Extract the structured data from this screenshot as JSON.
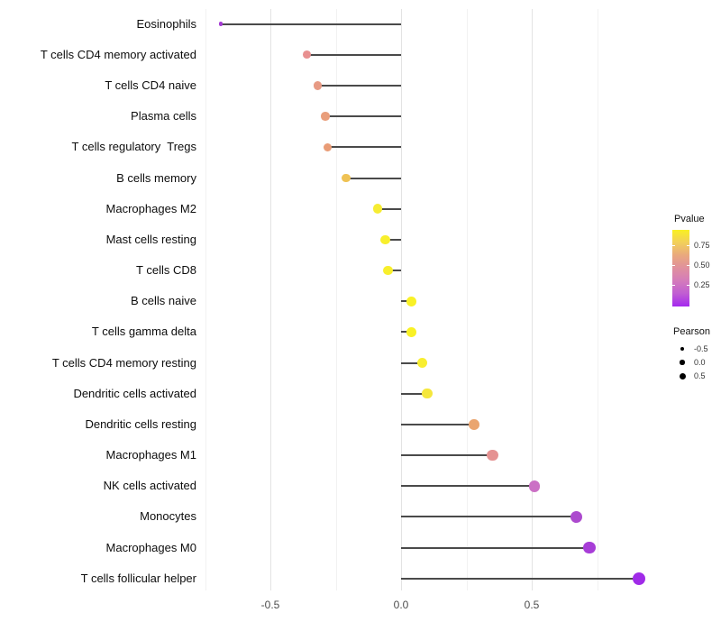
{
  "chart_data": {
    "type": "lollipop",
    "orientation": "horizontal",
    "title": "",
    "xlabel": "",
    "ylabel": "",
    "x_axis": {
      "tick_labels": [
        "-0.5",
        "0.0",
        "0.5"
      ],
      "tick_values": [
        -0.5,
        0.0,
        0.5
      ],
      "major_gridlines": [
        -0.5,
        0.0,
        0.5
      ],
      "minor_gridlines": [
        -0.75,
        -0.25,
        0.25,
        0.75
      ],
      "xlim": [
        -0.77,
        0.99
      ]
    },
    "series": [
      {
        "category": "Eosinophils",
        "pearson": -0.69,
        "color": "#A43BD3",
        "diameter": 4.5
      },
      {
        "category": "T cells CD4 memory activated",
        "pearson": -0.36,
        "color": "#E89090",
        "diameter": 8.8
      },
      {
        "category": "T cells CD4 naive",
        "pearson": -0.32,
        "color": "#E79A84",
        "diameter": 9.2
      },
      {
        "category": "Plasma cells",
        "pearson": -0.29,
        "color": "#E99E7B",
        "diameter": 9.4
      },
      {
        "category": "T cells regulatory  Tregs",
        "pearson": -0.28,
        "color": "#E99C76",
        "diameter": 9.4
      },
      {
        "category": "B cells memory",
        "pearson": -0.21,
        "color": "#EFC254",
        "diameter": 9.8
      },
      {
        "category": "Macrophages M2",
        "pearson": -0.09,
        "color": "#F6EC33",
        "diameter": 10.4
      },
      {
        "category": "Mast cells resting",
        "pearson": -0.06,
        "color": "#F8EF2C",
        "diameter": 10.5
      },
      {
        "category": "T cells CD8",
        "pearson": -0.05,
        "color": "#F8EF2C",
        "diameter": 10.5
      },
      {
        "category": "B cells naive",
        "pearson": 0.04,
        "color": "#F9F126",
        "diameter": 10.8
      },
      {
        "category": "T cells gamma delta",
        "pearson": 0.04,
        "color": "#F9F126",
        "diameter": 10.8
      },
      {
        "category": "T cells CD4 memory resting",
        "pearson": 0.08,
        "color": "#F8EE30",
        "diameter": 11.0
      },
      {
        "category": "Dendritic cells activated",
        "pearson": 0.1,
        "color": "#F5E73D",
        "diameter": 11.2
      },
      {
        "category": "Dendritic cells resting",
        "pearson": 0.28,
        "color": "#EAA56F",
        "diameter": 11.8
      },
      {
        "category": "Macrophages M1",
        "pearson": 0.35,
        "color": "#E59292",
        "diameter": 12.2
      },
      {
        "category": "NK cells activated",
        "pearson": 0.51,
        "color": "#CB70C5",
        "diameter": 12.6
      },
      {
        "category": "Monocytes",
        "pearson": 0.67,
        "color": "#AC4ACE",
        "diameter": 13.2
      },
      {
        "category": "Macrophages M0",
        "pearson": 0.72,
        "color": "#A73DD7",
        "diameter": 13.6
      },
      {
        "category": "T cells follicular helper",
        "pearson": 0.91,
        "color": "#A02BE8",
        "diameter": 14.4
      }
    ],
    "legend_pvalue": {
      "title": "Pvalue",
      "tick_labels": [
        "0.75",
        "0.50",
        "0.25"
      ],
      "gradient_top_to_bottom": [
        "#F9F022",
        "#F2CF5B",
        "#E9A87E",
        "#E0909E",
        "#D47BBB",
        "#C05DD3",
        "#A428EF"
      ]
    },
    "legend_pearson": {
      "title": "Pearson",
      "items": [
        {
          "label": "-0.5",
          "diameter": 4
        },
        {
          "label": "0.0",
          "diameter": 5.5
        },
        {
          "label": "0.5",
          "diameter": 7
        }
      ]
    }
  },
  "colors": {
    "stick": "#4a4a4a",
    "major_grid": "#e3e3e3",
    "minor_grid": "#f1f1f1",
    "background": "#ffffff",
    "axis_text": "#4d4d4d",
    "label_text": "#0d0d0d"
  }
}
